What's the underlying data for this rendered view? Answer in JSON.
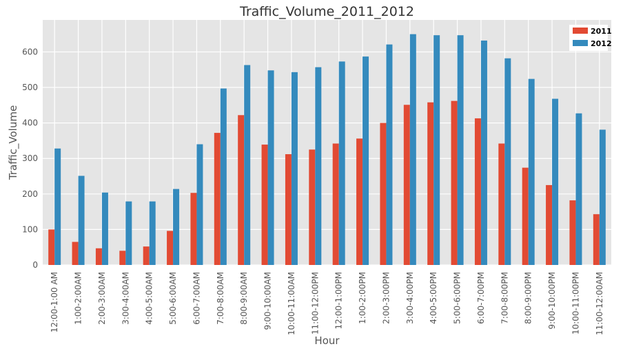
{
  "chart_data": {
    "type": "bar",
    "title": "Traffic_Volume_2011_2012",
    "xlabel": "Hour",
    "ylabel": "Traffic_Volume",
    "ylim": [
      0,
      690
    ],
    "yticks": [
      0,
      100,
      200,
      300,
      400,
      500,
      600
    ],
    "grid": true,
    "legend_position": "top-right",
    "categories": [
      "12:00-1:00 AM",
      "1:00-2:00AM",
      "2:00-3:00AM",
      "3:00-4:00AM",
      "4:00-5:00AM",
      "5:00-6:00AM",
      "6:00-7:00AM",
      "7:00-8:00AM",
      "8:00-9:00AM",
      "9:00-10:00AM",
      "10:00-11:00AM",
      "11:00-12:00PM",
      "12:00-1:00PM",
      "1:00-2:00PM",
      "2:00-3:00PM",
      "3:00-4:00PM",
      "4:00-5:00PM",
      "5:00-6:00PM",
      "6:00-7:00PM",
      "7:00-8:00PM",
      "8:00-9:00PM",
      "9:00-10:00PM",
      "10:00-11:00PM",
      "11:00-12:00AM"
    ],
    "series": [
      {
        "name": "2011",
        "color": "#E24A33",
        "values": [
          100,
          65,
          47,
          40,
          52,
          96,
          203,
          372,
          422,
          339,
          312,
          325,
          342,
          356,
          400,
          451,
          458,
          462,
          413,
          342,
          274,
          225,
          182,
          143
        ]
      },
      {
        "name": "2012",
        "color": "#348ABD",
        "values": [
          328,
          251,
          204,
          179,
          179,
          214,
          340,
          497,
          563,
          548,
          543,
          557,
          573,
          587,
          621,
          650,
          647,
          647,
          632,
          582,
          524,
          468,
          427,
          381
        ]
      }
    ]
  }
}
